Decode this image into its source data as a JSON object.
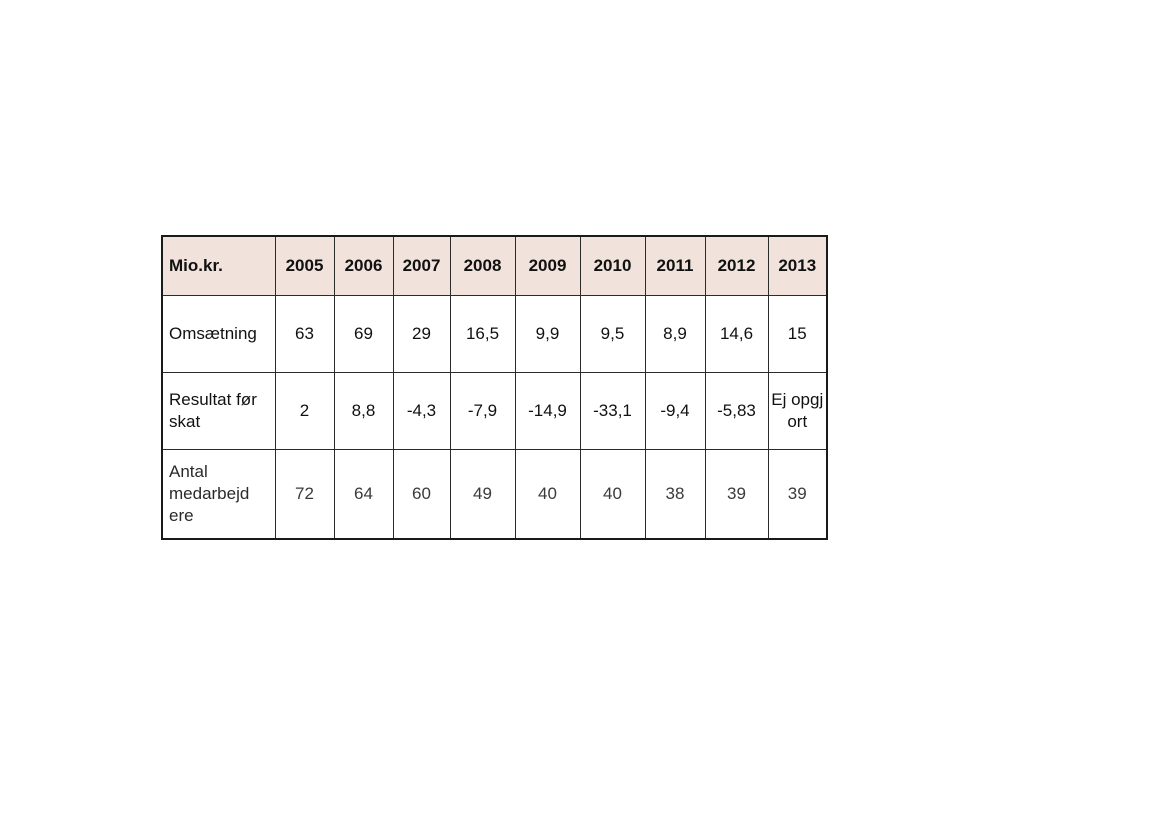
{
  "table": {
    "corner_label": "Mio.kr.",
    "years": [
      "2005",
      "2006",
      "2007",
      "2008",
      "2009",
      "2010",
      "2011",
      "2012",
      "2013"
    ],
    "rows": [
      {
        "label": "Omsætning",
        "values": [
          "63",
          "69",
          "29",
          "16,5",
          "9,9",
          "9,5",
          "8,9",
          "14,6",
          "15"
        ]
      },
      {
        "label": "Resultat før skat",
        "values": [
          "2",
          "8,8",
          "-4,3",
          "-7,9",
          "-14,9",
          "-33,1",
          "-9,4",
          "-5,83",
          "Ej opgj ort"
        ]
      },
      {
        "label": "Antal medarbejd ere",
        "values": [
          "72",
          "64",
          "60",
          "49",
          "40",
          "40",
          "38",
          "39",
          "39"
        ]
      }
    ]
  }
}
